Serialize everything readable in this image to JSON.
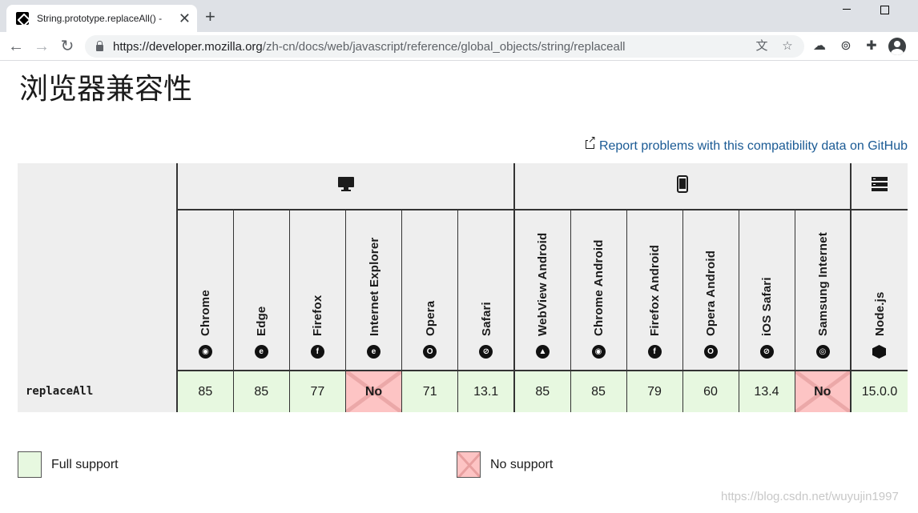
{
  "browser": {
    "tab_title": "String.prototype.replaceAll() -",
    "tab_close": "✕",
    "new_tab": "+",
    "url_host": "https://developer.mozilla.org",
    "url_path": "/zh-cn/docs/web/javascript/reference/global_objects/string/replaceall"
  },
  "page": {
    "heading": "浏览器兼容性",
    "report_link": "Report problems with this compatibility data on GitHub"
  },
  "compat": {
    "platforms": [
      "desktop-icon",
      "mobile-icon",
      "server-icon"
    ],
    "browsers": [
      {
        "name": "Chrome",
        "icon": "chrome-icon",
        "glyph": "◉"
      },
      {
        "name": "Edge",
        "icon": "edge-icon",
        "glyph": "e"
      },
      {
        "name": "Firefox",
        "icon": "firefox-icon",
        "glyph": "f"
      },
      {
        "name": "Internet Explorer",
        "icon": "ie-icon",
        "glyph": "e"
      },
      {
        "name": "Opera",
        "icon": "opera-icon",
        "glyph": "O"
      },
      {
        "name": "Safari",
        "icon": "safari-icon",
        "glyph": "⊘"
      },
      {
        "name": "WebView Android",
        "icon": "android-icon",
        "glyph": "▲"
      },
      {
        "name": "Chrome Android",
        "icon": "chrome-icon",
        "glyph": "◉"
      },
      {
        "name": "Firefox Android",
        "icon": "firefox-icon",
        "glyph": "f"
      },
      {
        "name": "Opera Android",
        "icon": "opera-icon",
        "glyph": "O"
      },
      {
        "name": "iOS Safari",
        "icon": "safari-icon",
        "glyph": "⊘"
      },
      {
        "name": "Samsung Internet",
        "icon": "samsung-icon",
        "glyph": "◎"
      },
      {
        "name": "Node.js",
        "icon": "nodejs-icon",
        "glyph": ""
      }
    ],
    "feature": "replaceAll",
    "support": [
      "85",
      "85",
      "77",
      "No",
      "71",
      "13.1",
      "85",
      "85",
      "79",
      "60",
      "13.4",
      "No",
      "15.0.0"
    ],
    "colors": {
      "full": "#e7f8e0",
      "none": "#fdc4c4"
    }
  },
  "legend": {
    "full": "Full support",
    "none": "No support"
  },
  "watermark": "https://blog.csdn.net/wuyujin1997"
}
